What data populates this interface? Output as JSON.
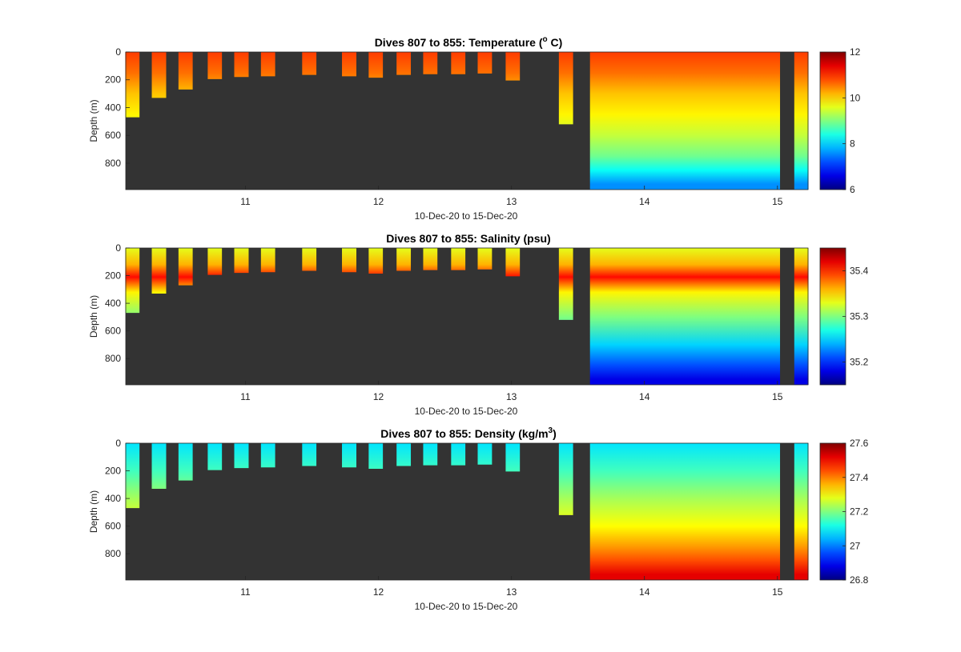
{
  "chart_data": [
    {
      "type": "heatmap",
      "title_prefix": "Dives 807 to 855: Temperature (",
      "title_sup": "o",
      "title_suffix": " C)",
      "xlabel": "10-Dec-20 to 15-Dec-20",
      "ylabel": "Depth (m)",
      "x_tick_labels": [
        "11",
        "12",
        "13",
        "14",
        "15"
      ],
      "y_tick_labels": [
        "0",
        "200",
        "400",
        "600",
        "800"
      ],
      "colorbar_tick_labels": [
        "12",
        "10",
        "8",
        "6"
      ],
      "colorbar_range": [
        6,
        12
      ],
      "colormap": "jet",
      "background_color": "#333333",
      "xlim": [
        10.1,
        15.23
      ],
      "ylim": [
        0,
        990
      ],
      "profiles": [
        {
          "x": 10.15,
          "max_depth": 470
        },
        {
          "x": 10.35,
          "max_depth": 330
        },
        {
          "x": 10.55,
          "max_depth": 270
        },
        {
          "x": 10.77,
          "max_depth": 195
        },
        {
          "x": 10.97,
          "max_depth": 180
        },
        {
          "x": 11.17,
          "max_depth": 175
        },
        {
          "x": 11.48,
          "max_depth": 165
        },
        {
          "x": 11.78,
          "max_depth": 175
        },
        {
          "x": 11.98,
          "max_depth": 185
        },
        {
          "x": 12.19,
          "max_depth": 165
        },
        {
          "x": 12.39,
          "max_depth": 160
        },
        {
          "x": 12.6,
          "max_depth": 160
        },
        {
          "x": 12.8,
          "max_depth": 155
        },
        {
          "x": 13.01,
          "max_depth": 205
        },
        {
          "x": 13.41,
          "max_depth": 520
        }
      ],
      "dense_block": {
        "x_start": 13.59,
        "x_end": 15.02,
        "max_depth": 990
      },
      "last_profile": {
        "x": 15.18,
        "max_depth": 990
      },
      "value_profile": [
        {
          "depth": 0,
          "value": 10.9
        },
        {
          "depth": 150,
          "value": 10.6
        },
        {
          "depth": 300,
          "value": 10.1
        },
        {
          "depth": 450,
          "value": 9.8
        },
        {
          "depth": 600,
          "value": 9.4
        },
        {
          "depth": 750,
          "value": 8.9
        },
        {
          "depth": 850,
          "value": 8.3
        },
        {
          "depth": 950,
          "value": 7.6
        }
      ]
    },
    {
      "type": "heatmap",
      "title_prefix": "Dives 807 to 855: Salinity (psu)",
      "title_sup": "",
      "title_suffix": "",
      "xlabel": "10-Dec-20 to 15-Dec-20",
      "ylabel": "Depth (m)",
      "x_tick_labels": [
        "11",
        "12",
        "13",
        "14",
        "15"
      ],
      "y_tick_labels": [
        "0",
        "200",
        "400",
        "600",
        "800"
      ],
      "colorbar_tick_labels": [
        "35.4",
        "35.3",
        "35.2"
      ],
      "colorbar_range": [
        35.15,
        35.45
      ],
      "colormap": "jet",
      "background_color": "#333333",
      "xlim": [
        10.1,
        15.23
      ],
      "ylim": [
        0,
        990
      ],
      "profiles": [
        {
          "x": 10.15,
          "max_depth": 470
        },
        {
          "x": 10.35,
          "max_depth": 330
        },
        {
          "x": 10.55,
          "max_depth": 270
        },
        {
          "x": 10.77,
          "max_depth": 195
        },
        {
          "x": 10.97,
          "max_depth": 180
        },
        {
          "x": 11.17,
          "max_depth": 175
        },
        {
          "x": 11.48,
          "max_depth": 165
        },
        {
          "x": 11.78,
          "max_depth": 175
        },
        {
          "x": 11.98,
          "max_depth": 185
        },
        {
          "x": 12.19,
          "max_depth": 165
        },
        {
          "x": 12.39,
          "max_depth": 160
        },
        {
          "x": 12.6,
          "max_depth": 160
        },
        {
          "x": 12.8,
          "max_depth": 155
        },
        {
          "x": 13.01,
          "max_depth": 205
        },
        {
          "x": 13.41,
          "max_depth": 520
        }
      ],
      "dense_block": {
        "x_start": 13.59,
        "x_end": 15.02,
        "max_depth": 990
      },
      "last_profile": {
        "x": 15.18,
        "max_depth": 990
      },
      "value_profile": [
        {
          "depth": 0,
          "value": 35.33
        },
        {
          "depth": 120,
          "value": 35.36
        },
        {
          "depth": 210,
          "value": 35.41
        },
        {
          "depth": 320,
          "value": 35.34
        },
        {
          "depth": 500,
          "value": 35.3
        },
        {
          "depth": 700,
          "value": 35.25
        },
        {
          "depth": 850,
          "value": 35.21
        },
        {
          "depth": 950,
          "value": 35.18
        }
      ]
    },
    {
      "type": "heatmap",
      "title_prefix": "Dives 807 to 855: Density (kg/m",
      "title_sup": "3",
      "title_suffix": ")",
      "xlabel": "10-Dec-20 to 15-Dec-20",
      "ylabel": "Depth (m)",
      "x_tick_labels": [
        "11",
        "12",
        "13",
        "14",
        "15"
      ],
      "y_tick_labels": [
        "0",
        "200",
        "400",
        "600",
        "800"
      ],
      "colorbar_tick_labels": [
        "27.6",
        "27.4",
        "27.2",
        "27",
        "26.8"
      ],
      "colorbar_range": [
        26.8,
        27.6
      ],
      "colormap": "jet",
      "background_color": "#333333",
      "xlim": [
        10.1,
        15.23
      ],
      "ylim": [
        0,
        990
      ],
      "profiles": [
        {
          "x": 10.15,
          "max_depth": 470
        },
        {
          "x": 10.35,
          "max_depth": 330
        },
        {
          "x": 10.55,
          "max_depth": 270
        },
        {
          "x": 10.77,
          "max_depth": 195
        },
        {
          "x": 10.97,
          "max_depth": 180
        },
        {
          "x": 11.17,
          "max_depth": 175
        },
        {
          "x": 11.48,
          "max_depth": 165
        },
        {
          "x": 11.78,
          "max_depth": 175
        },
        {
          "x": 11.98,
          "max_depth": 185
        },
        {
          "x": 12.19,
          "max_depth": 165
        },
        {
          "x": 12.39,
          "max_depth": 160
        },
        {
          "x": 12.6,
          "max_depth": 160
        },
        {
          "x": 12.8,
          "max_depth": 155
        },
        {
          "x": 13.01,
          "max_depth": 205
        },
        {
          "x": 13.41,
          "max_depth": 520
        }
      ],
      "dense_block": {
        "x_start": 13.59,
        "x_end": 15.02,
        "max_depth": 990
      },
      "last_profile": {
        "x": 15.18,
        "max_depth": 990
      },
      "value_profile": [
        {
          "depth": 0,
          "value": 27.08
        },
        {
          "depth": 200,
          "value": 27.15
        },
        {
          "depth": 400,
          "value": 27.23
        },
        {
          "depth": 600,
          "value": 27.3
        },
        {
          "depth": 750,
          "value": 27.38
        },
        {
          "depth": 850,
          "value": 27.44
        },
        {
          "depth": 950,
          "value": 27.52
        }
      ]
    }
  ]
}
